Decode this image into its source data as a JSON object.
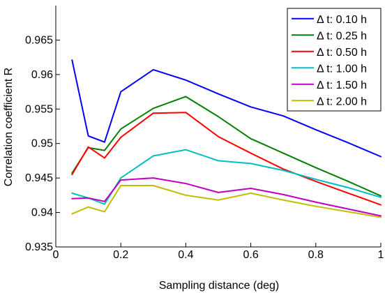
{
  "chart_data": {
    "type": "line",
    "xlabel": "Sampling distance (deg)",
    "ylabel": "Correlation coefficient R",
    "xlim": [
      0,
      1
    ],
    "ylim": [
      0.935,
      0.97
    ],
    "xticks": [
      0,
      0.2,
      0.4,
      0.6,
      0.8,
      1
    ],
    "xtick_labels": [
      "0",
      "0.2",
      "0.4",
      "0.6",
      "0.8",
      "1"
    ],
    "yticks": [
      0.935,
      0.94,
      0.945,
      0.95,
      0.955,
      0.96,
      0.965
    ],
    "ytick_labels": [
      "0.935",
      "0.94",
      "0.945",
      "0.95",
      "0.955",
      "0.96",
      "0.965"
    ],
    "grid": false,
    "legend_position": "top-right",
    "series": [
      {
        "name": "Δ t: 0.10 h",
        "color": "#0000ff",
        "x": [
          0.05,
          0.1,
          0.15,
          0.2,
          0.3,
          0.4,
          0.5,
          0.6,
          0.7,
          0.8,
          0.9,
          1.0
        ],
        "y": [
          0.9621,
          0.9511,
          0.9502,
          0.9575,
          0.9607,
          0.9592,
          0.9572,
          0.9553,
          0.954,
          0.952,
          0.9501,
          0.9481
        ]
      },
      {
        "name": "Δ t: 0.25 h",
        "color": "#008000",
        "x": [
          0.05,
          0.1,
          0.15,
          0.2,
          0.3,
          0.4,
          0.5,
          0.6,
          0.7,
          0.8,
          0.9,
          1.0
        ],
        "y": [
          0.9457,
          0.9494,
          0.949,
          0.9521,
          0.9551,
          0.9568,
          0.9539,
          0.9507,
          0.9486,
          0.9465,
          0.9445,
          0.9424
        ]
      },
      {
        "name": "Δ t: 0.50 h",
        "color": "#ff0000",
        "x": [
          0.05,
          0.1,
          0.15,
          0.2,
          0.3,
          0.4,
          0.5,
          0.6,
          0.7,
          0.8,
          0.9,
          1.0
        ],
        "y": [
          0.9455,
          0.9495,
          0.9479,
          0.9509,
          0.9544,
          0.9545,
          0.951,
          0.9486,
          0.9463,
          0.9445,
          0.9428,
          0.9411
        ]
      },
      {
        "name": "Δ t: 1.00 h",
        "color": "#00bfbf",
        "x": [
          0.05,
          0.1,
          0.15,
          0.2,
          0.3,
          0.4,
          0.5,
          0.6,
          0.7,
          0.8,
          0.9,
          1.0
        ],
        "y": [
          0.9428,
          0.9421,
          0.9412,
          0.945,
          0.9482,
          0.9491,
          0.9475,
          0.9471,
          0.9461,
          0.9448,
          0.9436,
          0.9422
        ]
      },
      {
        "name": "Δ t: 1.50 h",
        "color": "#bf00bf",
        "x": [
          0.05,
          0.1,
          0.15,
          0.2,
          0.3,
          0.4,
          0.5,
          0.6,
          0.7,
          0.8,
          0.9,
          1.0
        ],
        "y": [
          0.942,
          0.9421,
          0.9416,
          0.9447,
          0.945,
          0.9442,
          0.9429,
          0.9435,
          0.9426,
          0.9415,
          0.9405,
          0.9395
        ]
      },
      {
        "name": "Δ t: 2.00 h",
        "color": "#bfbf00",
        "x": [
          0.05,
          0.1,
          0.15,
          0.2,
          0.3,
          0.4,
          0.5,
          0.6,
          0.7,
          0.8,
          0.9,
          1.0
        ],
        "y": [
          0.9398,
          0.9408,
          0.9401,
          0.9439,
          0.9439,
          0.9425,
          0.9418,
          0.9428,
          0.9418,
          0.9409,
          0.9401,
          0.9393
        ]
      }
    ]
  }
}
